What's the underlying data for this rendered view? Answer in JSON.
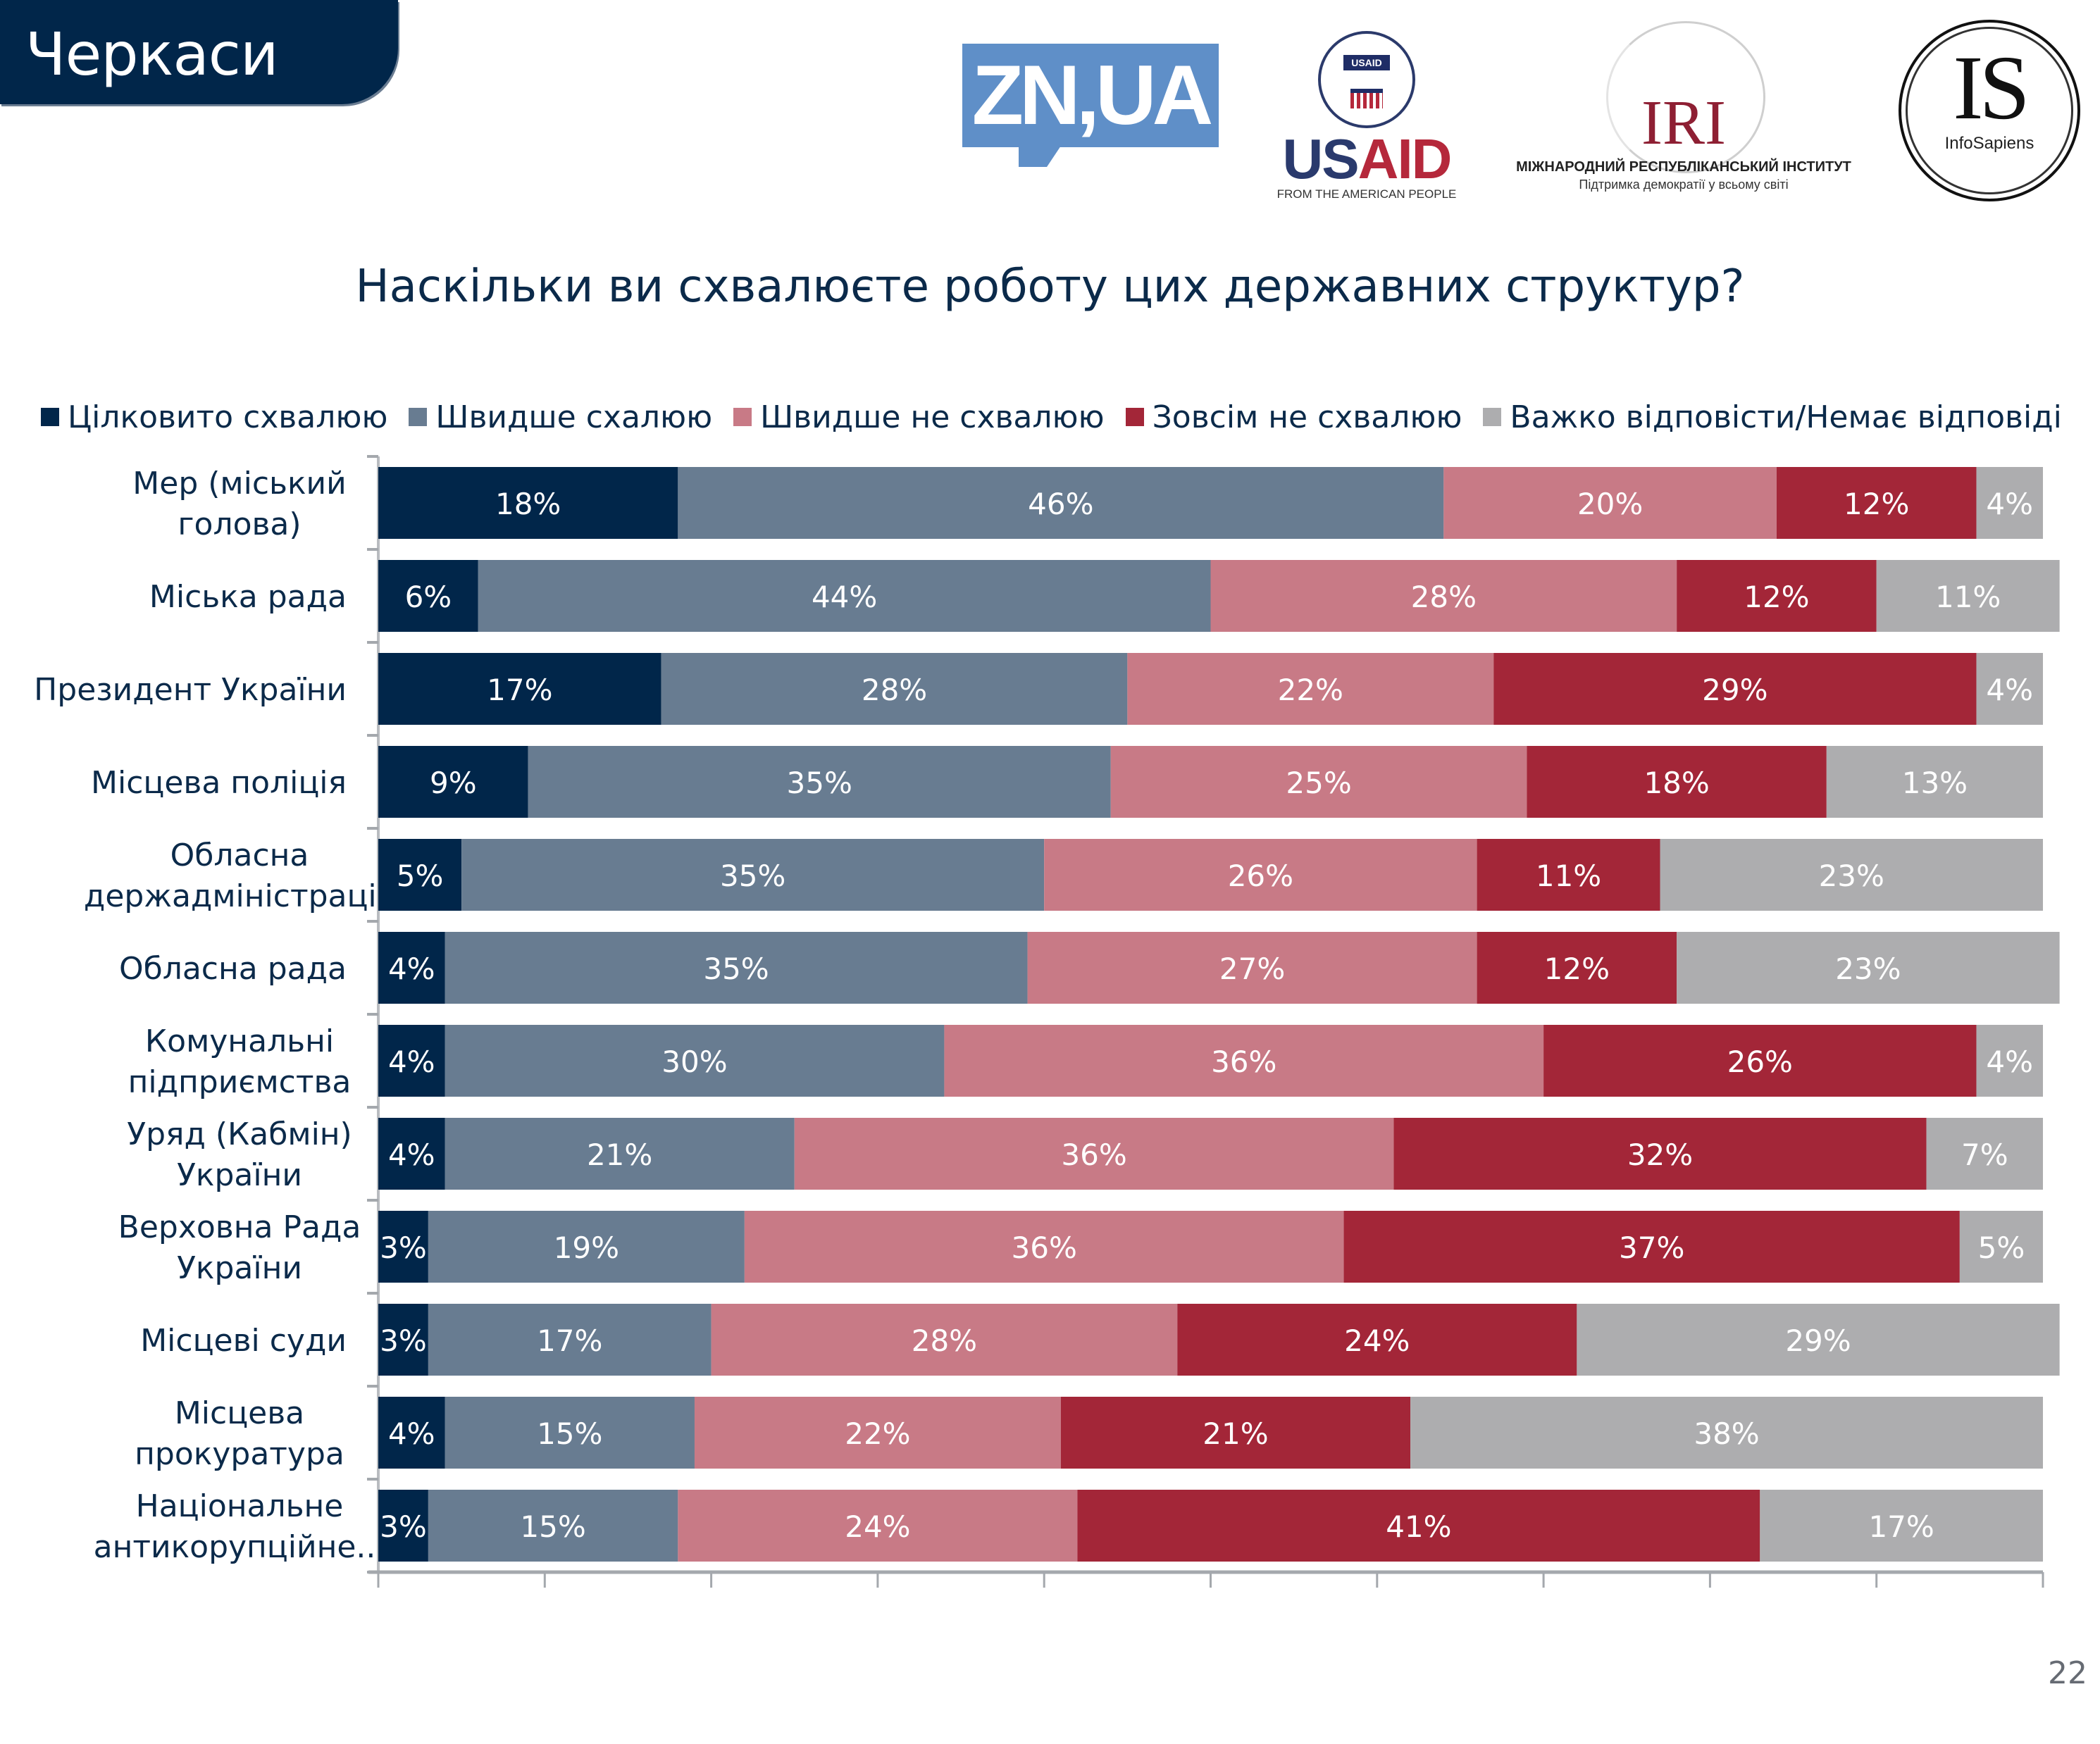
{
  "header": {
    "city": "Черкаси",
    "logos": [
      {
        "name": "zn-ua-logo",
        "text": "ZN,UA"
      },
      {
        "name": "usaid-logo",
        "text_us": "US",
        "text_aid": "AID",
        "seal_text": "USAID",
        "tagline": "FROM THE AMERICAN PEOPLE"
      },
      {
        "name": "iri-logo",
        "text": "IRI",
        "org": "МІЖНАРОДНИЙ РЕСПУБЛІКАНСЬКИЙ ІНСТИТУТ",
        "slogan": "Підтримка демократії у всьому світі"
      },
      {
        "name": "infosapiens-logo",
        "text": "IS",
        "sub": "InfoSapiens"
      }
    ]
  },
  "page_number": "22",
  "chart_data": {
    "type": "bar",
    "orientation": "horizontal",
    "stacked": "percent",
    "title": "Наскільки ви схвалюєте роботу цих державних структур?",
    "xlabel": "",
    "ylabel": "",
    "xlim": [
      0,
      100
    ],
    "x_ticks": [
      "0%",
      "10%",
      "20%",
      "30%",
      "40%",
      "50%",
      "60%",
      "70%",
      "80%",
      "90%",
      "100%"
    ],
    "grid": false,
    "legend_position": "top",
    "categories": [
      "Мер (міський голова)",
      "Міська рада",
      "Президент України",
      "Місцева поліція",
      "Обласна держадміністрація",
      "Обласна рада",
      "Комунальні підприємства",
      "Уряд (Кабмін) України",
      "Верховна Рада України",
      "Місцеві суди",
      "Місцева прокуратура",
      "Національне антикорупційне..."
    ],
    "category_lines": [
      [
        "Мер (міський",
        "голова)"
      ],
      [
        "Міська рада"
      ],
      [
        "Президент України"
      ],
      [
        "Місцева поліція"
      ],
      [
        "Обласна",
        "держадміністрація"
      ],
      [
        "Обласна рада"
      ],
      [
        "Комунальні",
        "підприємства"
      ],
      [
        "Уряд (Кабмін)",
        "України"
      ],
      [
        "Верховна Рада",
        "України"
      ],
      [
        "Місцеві суди"
      ],
      [
        "Місцева",
        "прокуратура"
      ],
      [
        "Національне",
        "антикорупційне..."
      ]
    ],
    "series": [
      {
        "name": "Цілковито схвалюю",
        "color": "#01264a",
        "values": [
          18,
          6,
          17,
          9,
          5,
          4,
          4,
          4,
          3,
          3,
          4,
          3
        ]
      },
      {
        "name": "Швидше схалюю",
        "color": "#687c91",
        "values": [
          46,
          44,
          28,
          35,
          35,
          35,
          30,
          21,
          19,
          17,
          15,
          15
        ]
      },
      {
        "name": "Швидше не схвалюю",
        "color": "#c87a86",
        "values": [
          20,
          28,
          22,
          25,
          26,
          27,
          36,
          36,
          36,
          28,
          22,
          24
        ]
      },
      {
        "name": "Зовсім не схвалюю",
        "color": "#a32638",
        "values": [
          12,
          12,
          29,
          18,
          11,
          12,
          26,
          32,
          37,
          24,
          21,
          41
        ]
      },
      {
        "name": "Важко відповісти/Немає відповіді",
        "color": "#adadaf",
        "values": [
          4,
          11,
          4,
          13,
          23,
          23,
          4,
          7,
          5,
          29,
          38,
          17
        ]
      }
    ],
    "value_label_suffix": "%"
  }
}
